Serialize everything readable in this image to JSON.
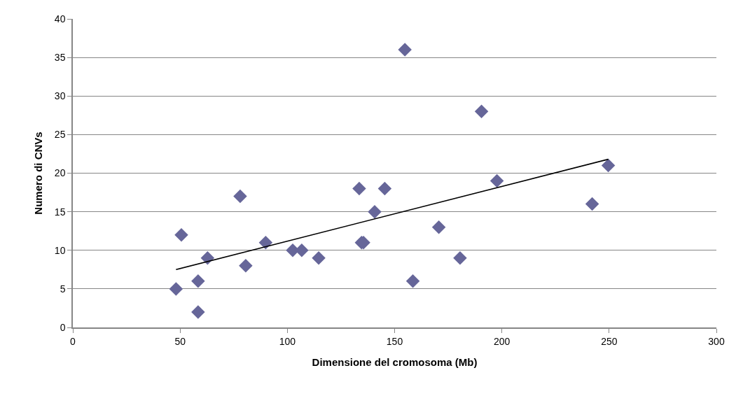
{
  "chart_data": {
    "type": "scatter",
    "xlabel": "Dimensione del cromosoma (Mb)",
    "ylabel": "Numero di CNVs",
    "xlim": [
      0,
      300
    ],
    "xticks": [
      0,
      50,
      100,
      150,
      200,
      250,
      300
    ],
    "ylim": [
      0,
      40
    ],
    "yticks": [
      0,
      5,
      10,
      15,
      20,
      25,
      30,
      35,
      40
    ],
    "grid": "y",
    "marker": "diamond",
    "series": [
      {
        "color": "#666699",
        "x": [
          48.1,
          50.6,
          58.4,
          58.4,
          62.8,
          78,
          80.6,
          89.9,
          102.5,
          106.7,
          114.6,
          133.5,
          134.6,
          135.5,
          140.7,
          145.4,
          154.8,
          158.5,
          170.6,
          180.5,
          190.5,
          197.7,
          242.1,
          249.6
        ],
        "values": [
          5,
          12,
          6,
          2,
          9,
          17,
          8,
          11,
          10,
          10,
          9,
          18,
          11,
          11,
          15,
          18,
          36,
          6,
          13,
          9,
          28,
          19,
          16,
          21
        ]
      },
      {
        "type": "line",
        "color": "#000000",
        "marker": "none",
        "line_style": "solid",
        "x": [
          48.1,
          249.6
        ],
        "values": [
          7.5,
          21.8
        ]
      }
    ]
  }
}
